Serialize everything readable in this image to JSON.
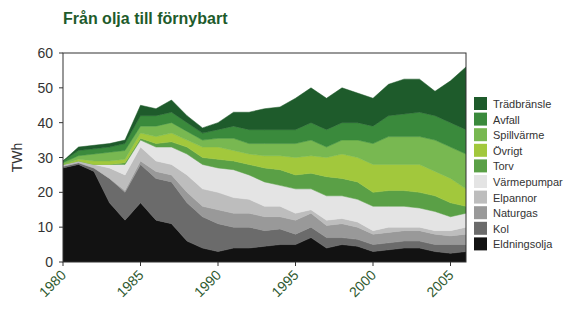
{
  "chart_data": {
    "type": "area",
    "title": "Från olja till förnybart",
    "y_label": "TWh",
    "stacked": true,
    "legend": "right",
    "grid": false,
    "x": [
      1980,
      1981,
      1982,
      1983,
      1984,
      1985,
      1986,
      1987,
      1988,
      1989,
      1990,
      1991,
      1992,
      1993,
      1994,
      1995,
      1996,
      1997,
      1998,
      1999,
      2000,
      2001,
      2002,
      2003,
      2004,
      2005,
      2006
    ],
    "xlim": [
      1980,
      2006
    ],
    "xticks": [
      1980,
      1985,
      1990,
      1995,
      2000,
      2005
    ],
    "ylim": [
      0,
      60
    ],
    "yticks": [
      0,
      10,
      20,
      30,
      40,
      50,
      60
    ],
    "series": [
      {
        "name": "Trädbränsle",
        "color": "#1e5b2b",
        "values": [
          0,
          1,
          1,
          1,
          1,
          3,
          2,
          3.5,
          2,
          1.5,
          2,
          4,
          5,
          6,
          6.5,
          9,
          10,
          9,
          10,
          8.5,
          8,
          9,
          10,
          9.5,
          7,
          12,
          18
        ]
      },
      {
        "name": "Avfall",
        "color": "#3a8a3c",
        "values": [
          0.5,
          1.5,
          1.5,
          1.5,
          2,
          3,
          3,
          3,
          2.5,
          2,
          2.5,
          3.5,
          4,
          4,
          4,
          4,
          5,
          5,
          5,
          5,
          5,
          6,
          6.5,
          7,
          7,
          7,
          7
        ]
      },
      {
        "name": "Spillvärme",
        "color": "#78b851",
        "values": [
          0.5,
          1,
          2,
          2.5,
          2.5,
          2,
          3,
          3,
          2.5,
          2,
          2.5,
          3.5,
          3,
          3.5,
          3.5,
          4,
          4.5,
          3,
          4,
          5,
          6,
          8,
          8,
          8,
          9,
          9,
          10
        ]
      },
      {
        "name": "Övrigt",
        "color": "#a2c83c",
        "values": [
          0,
          0.5,
          1,
          1,
          1,
          1.5,
          2,
          2.5,
          2,
          3,
          3.5,
          3,
          3,
          3.5,
          4,
          5,
          5,
          5.5,
          7,
          7,
          8,
          7.5,
          7.5,
          8,
          7,
          7,
          5
        ]
      },
      {
        "name": "Torv",
        "color": "#5aa046",
        "values": [
          0,
          0,
          0,
          0,
          0.5,
          0.5,
          1,
          1.5,
          2,
          2,
          2.5,
          2.5,
          3,
          4,
          4.5,
          4,
          4.5,
          5.5,
          5,
          5,
          4,
          4.5,
          4.5,
          4.5,
          4.5,
          4,
          2
        ]
      },
      {
        "name": "Värmepumpar",
        "color": "#e4e4e4",
        "values": [
          0,
          0,
          0,
          1,
          3,
          2,
          4,
          5,
          6,
          7,
          7,
          8,
          7,
          7,
          6,
          7,
          6,
          7,
          6.5,
          6.5,
          7,
          6,
          6,
          5.5,
          5.5,
          4,
          4
        ]
      },
      {
        "name": "Elpannor",
        "color": "#bdbdbd",
        "values": [
          0.5,
          0.5,
          1,
          3,
          4.5,
          4,
          3,
          3,
          5,
          5,
          5,
          4.5,
          4,
          3,
          3,
          2,
          1,
          1.5,
          1.5,
          1.5,
          1,
          1.5,
          1,
          1,
          1,
          1.5,
          2
        ]
      },
      {
        "name": "Naturgas",
        "color": "#999999",
        "values": [
          0,
          0,
          0,
          0,
          0.5,
          1,
          2,
          2,
          3,
          3,
          4,
          4,
          4,
          4,
          3.5,
          4,
          4,
          3.5,
          4,
          3.5,
          3,
          3,
          3,
          3,
          3,
          2.5,
          3
        ]
      },
      {
        "name": "Kol",
        "color": "#6b6b6b",
        "values": [
          0.5,
          0.5,
          1,
          7,
          8,
          11,
          12,
          12,
          11,
          9,
          8,
          6,
          6,
          4.5,
          4.5,
          3,
          3,
          3,
          2,
          2,
          2,
          2,
          2,
          2,
          2,
          2.5,
          2
        ]
      },
      {
        "name": "Eldningsolja",
        "color": "#121212",
        "values": [
          27,
          28,
          26,
          17,
          12,
          17,
          12,
          11,
          6,
          4,
          3,
          4,
          4,
          4.5,
          5,
          5,
          7,
          4,
          5,
          4.5,
          3,
          3.5,
          4,
          4,
          3,
          2.5,
          3
        ]
      }
    ]
  }
}
